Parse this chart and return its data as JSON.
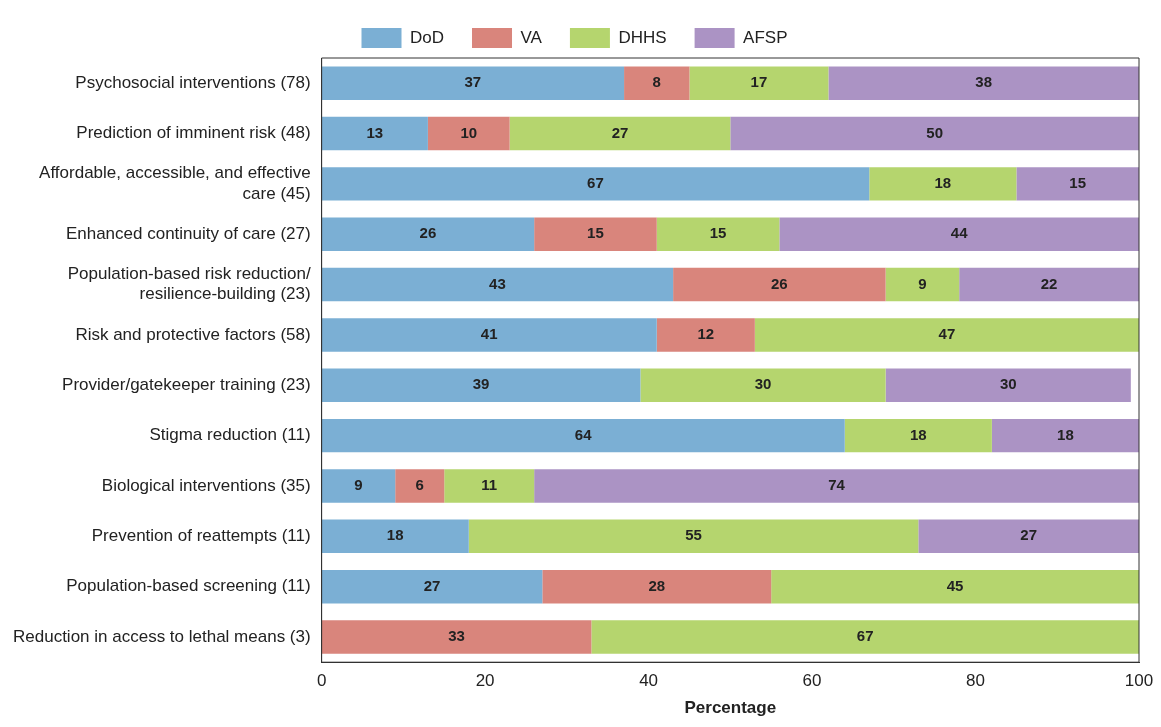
{
  "chart_data": {
    "type": "bar",
    "orientation": "horizontal",
    "stacked": true,
    "xlabel": "Percentage",
    "categories": [
      "Psychosocial interventions (78)",
      "Prediction of imminent risk (48)",
      "Affordable, accessible, and effective care (45)",
      "Enhanced continuity of care (27)",
      "Population-based risk reduction/ resilience-building (23)",
      "Risk and protective factors (58)",
      "Provider/gatekeeper training (23)",
      "Stigma reduction (11)",
      "Biological interventions (35)",
      "Prevention of reattempts (11)",
      "Population-based screening (11)",
      "Reduction in access to lethal means (3)"
    ],
    "series": [
      {
        "name": "DoD",
        "color": "#7bafd4",
        "values": [
          37,
          13,
          67,
          26,
          43,
          41,
          39,
          64,
          9,
          18,
          27,
          null
        ]
      },
      {
        "name": "VA",
        "color": "#d9857c",
        "values": [
          8,
          10,
          null,
          15,
          26,
          12,
          null,
          null,
          6,
          null,
          28,
          33
        ]
      },
      {
        "name": "DHHS",
        "color": "#b5d56e",
        "values": [
          17,
          27,
          18,
          15,
          9,
          47,
          30,
          18,
          11,
          55,
          45,
          67
        ]
      },
      {
        "name": "AFSP",
        "color": "#ab93c4",
        "values": [
          38,
          50,
          15,
          44,
          22,
          null,
          30,
          18,
          74,
          27,
          null,
          null
        ]
      }
    ],
    "xlim": [
      0,
      100
    ],
    "xticks": [
      0,
      20,
      40,
      60,
      80,
      100
    ],
    "grid": false,
    "legend": "top",
    "data_labels": true
  }
}
